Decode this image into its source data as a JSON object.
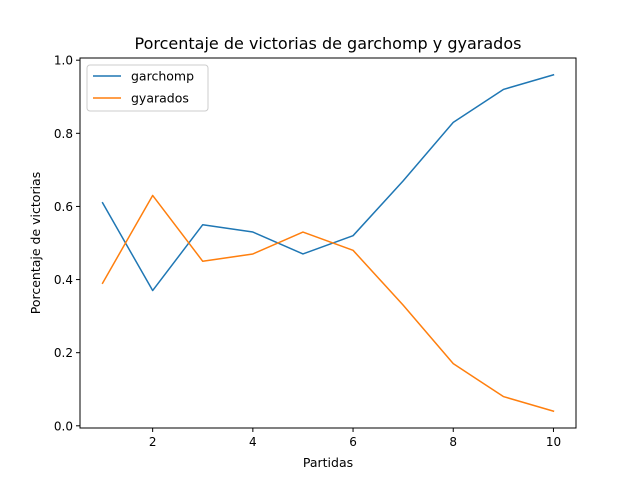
{
  "chart_data": {
    "type": "line",
    "title": "Porcentaje de victorias de garchomp y gyarados",
    "xlabel": "Partidas",
    "ylabel": "Porcentaje de victorias",
    "x": [
      1,
      2,
      3,
      4,
      5,
      6,
      7,
      8,
      9,
      10
    ],
    "xlim": [
      0.55,
      10.45
    ],
    "ylim": [
      -0.006,
      1.006
    ],
    "xticks": [
      2,
      4,
      6,
      8,
      10
    ],
    "xtick_labels": [
      "2",
      "4",
      "6",
      "8",
      "10"
    ],
    "yticks": [
      0.0,
      0.2,
      0.4,
      0.6,
      0.8,
      1.0
    ],
    "ytick_labels": [
      "0.0",
      "0.2",
      "0.4",
      "0.6",
      "0.8",
      "1.0"
    ],
    "grid": false,
    "legend_position": "top-left",
    "series": [
      {
        "name": "garchomp",
        "color": "#1f77b4",
        "values": [
          0.61,
          0.37,
          0.55,
          0.53,
          0.47,
          0.52,
          0.67,
          0.83,
          0.92,
          0.96
        ]
      },
      {
        "name": "gyarados",
        "color": "#ff7f0e",
        "values": [
          0.39,
          0.63,
          0.45,
          0.47,
          0.53,
          0.48,
          0.33,
          0.17,
          0.08,
          0.04
        ]
      }
    ]
  }
}
